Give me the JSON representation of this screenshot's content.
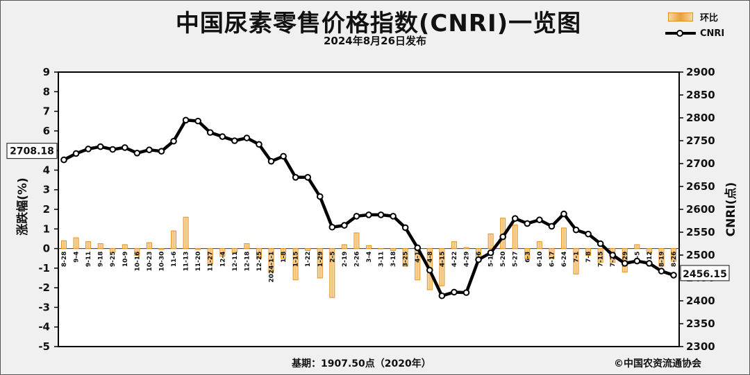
{
  "header": {
    "title": "中国尿素零售价格指数(CNRI)一览图",
    "subtitle": "2024年8月26日发布"
  },
  "legend": {
    "bar_label": "环比",
    "line_label": "CNRI"
  },
  "footer": {
    "base_note": "基期：1907.50点（2020年）",
    "copyright": "©中国农资流通协会"
  },
  "callouts": {
    "start_value": "2708.18",
    "end_value": "2456.15"
  },
  "colors": {
    "bar_fill": "#f2c27a",
    "bar_stroke": "#e8901c",
    "line": "#000000",
    "plot_bg": "#ffffff"
  },
  "chart_data": {
    "type": "bar+line",
    "title": "中国尿素零售价格指数(CNRI)一览图",
    "left_axis": {
      "label": "涨跌幅(%)",
      "range": [
        -5,
        9
      ],
      "step": 1
    },
    "right_axis": {
      "label": "CNRI(点)",
      "range": [
        2300,
        2900
      ],
      "step": 50
    },
    "grid": false,
    "legend_position": "top-right",
    "categories": [
      "8-28",
      "9-4",
      "9-11",
      "9-18",
      "9-25",
      "10-9",
      "10-16",
      "10-23",
      "10-30",
      "11-6",
      "11-13",
      "11-20",
      "11-27",
      "12-4",
      "12-11",
      "12-18",
      "12-25",
      "2024-1-1",
      "1-8",
      "1-15",
      "1-22",
      "1-29",
      "2-5",
      "2-19",
      "2-26",
      "3-4",
      "3-11",
      "3-18",
      "3-25",
      "4-1",
      "4-8",
      "4-15",
      "4-22",
      "4-29",
      "5-6",
      "5-13",
      "5-20",
      "5-27",
      "6-3",
      "6-10",
      "6-17",
      "6-24",
      "7-1",
      "7-8",
      "7-15",
      "7-22",
      "7-29",
      "8-5",
      "8-12",
      "8-19",
      "8-26"
    ],
    "series": [
      {
        "name": "环比",
        "axis": "left",
        "values": [
          0.4,
          0.55,
          0.35,
          0.25,
          -0.2,
          0.2,
          -0.35,
          0.3,
          -0.05,
          0.9,
          1.6,
          -0.05,
          -0.8,
          -0.4,
          -0.2,
          0.25,
          -0.5,
          -1.2,
          -0.5,
          -1.6,
          -0.1,
          -1.5,
          -2.5,
          0.2,
          0.8,
          0.15,
          0.0,
          -0.1,
          -0.9,
          -1.6,
          -2.1,
          -1.9,
          0.35,
          0.05,
          -0.6,
          0.75,
          1.55,
          1.2,
          -0.5,
          0.35,
          -0.5,
          1.05,
          -1.3,
          -0.35,
          -0.7,
          -0.7,
          -1.2,
          0.2,
          -0.25,
          -0.9,
          -0.65
        ]
      },
      {
        "name": "CNRI",
        "axis": "right",
        "values": [
          2708.18,
          2722,
          2732,
          2737,
          2731,
          2735,
          2723,
          2730,
          2727,
          2749,
          2795,
          2793,
          2768,
          2759,
          2750,
          2756,
          2742,
          2705,
          2716,
          2670,
          2670,
          2628,
          2561,
          2565,
          2585,
          2588,
          2588,
          2585,
          2560,
          2516,
          2467,
          2411,
          2419,
          2418,
          2490,
          2505,
          2540,
          2580,
          2569,
          2577,
          2563,
          2590,
          2555,
          2546,
          2525,
          2500,
          2482,
          2487,
          2482,
          2465,
          2456.15
        ]
      }
    ]
  }
}
